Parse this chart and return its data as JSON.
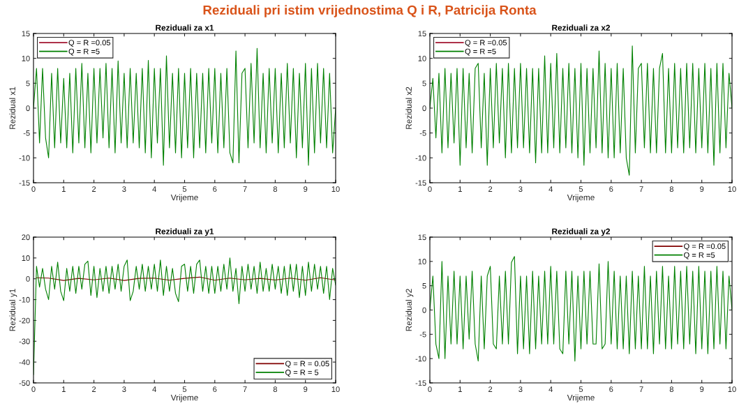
{
  "chart_data": [
    {
      "type": "line",
      "title": "Reziduali za x1",
      "xlabel": "Vrijeme",
      "ylabel": "Rezidual x1",
      "xlim": [
        0,
        10
      ],
      "xticks": [
        0,
        1,
        2,
        3,
        4,
        5,
        6,
        7,
        8,
        9,
        10
      ],
      "ylim": [
        -15,
        15
      ],
      "yticks": [
        -15,
        -10,
        -5,
        0,
        5,
        10,
        15
      ],
      "grid": false,
      "legend": "top left",
      "annotations": [
        "Reziduali pri istim vrijednostima Q i R, Patricija Ronta"
      ],
      "x": [
        0,
        0.1,
        0.2,
        0.3,
        0.4,
        0.5,
        0.6,
        0.7,
        0.8,
        0.9,
        1,
        1.1,
        1.2,
        1.3,
        1.4,
        1.5,
        1.6,
        1.7,
        1.8,
        1.9,
        2,
        2.1,
        2.2,
        2.3,
        2.4,
        2.5,
        2.6,
        2.7,
        2.8,
        2.9,
        3,
        3.1,
        3.2,
        3.3,
        3.4,
        3.5,
        3.6,
        3.7,
        3.8,
        3.9,
        4,
        4.1,
        4.2,
        4.3,
        4.4,
        4.5,
        4.6,
        4.7,
        4.8,
        4.9,
        5,
        5.1,
        5.2,
        5.3,
        5.4,
        5.5,
        5.6,
        5.7,
        5.8,
        5.9,
        6,
        6.1,
        6.2,
        6.3,
        6.4,
        6.5,
        6.6,
        6.7,
        6.8,
        6.9,
        7,
        7.1,
        7.2,
        7.3,
        7.4,
        7.5,
        7.6,
        7.7,
        7.8,
        7.9,
        8,
        8.1,
        8.2,
        8.3,
        8.4,
        8.5,
        8.6,
        8.7,
        8.8,
        8.9,
        9,
        9.1,
        9.2,
        9.3,
        9.4,
        9.5,
        9.6,
        9.7,
        9.8,
        9.9,
        10
      ],
      "series": [
        {
          "name": "Q = R =0.05",
          "color": "#a2142f",
          "values": [
            null,
            null,
            null,
            null,
            null,
            null,
            null,
            null,
            null,
            null,
            null,
            null,
            null,
            null,
            null,
            null,
            null,
            null,
            null,
            null,
            null,
            null,
            null,
            null,
            null,
            null,
            null,
            null,
            null,
            null,
            null,
            null,
            null,
            null,
            null,
            null,
            null,
            null,
            null,
            null,
            null,
            null,
            null,
            null,
            null,
            null,
            null,
            null,
            null,
            null,
            null,
            null,
            null,
            null,
            null,
            null,
            null,
            null,
            null,
            null,
            null,
            null,
            null,
            null,
            null,
            null,
            null,
            null,
            null,
            null,
            null,
            null,
            null,
            null,
            null,
            null,
            null,
            null,
            null,
            null,
            null,
            null,
            null,
            null,
            null,
            null,
            null,
            null,
            null,
            null,
            null,
            null,
            null,
            null,
            null,
            null,
            null,
            null,
            null,
            null,
            null
          ]
        },
        {
          "name": "Q = R =5",
          "color": "#008000",
          "values": [
            0,
            8,
            -7,
            8,
            -6,
            -10,
            7,
            -8,
            8,
            -7,
            6,
            -8,
            7,
            -9,
            8,
            -7,
            9,
            -8,
            7,
            -9,
            8,
            -7,
            8,
            -6,
            9,
            -8,
            8,
            -9,
            9.5,
            -7,
            7,
            -8,
            8,
            -7,
            7,
            -8,
            8,
            -9,
            9.6,
            -10,
            8,
            -7,
            8,
            -11.5,
            10.5,
            -8,
            7,
            -9,
            8,
            -10,
            7,
            -8,
            8,
            -10,
            7,
            -8,
            7,
            -9,
            8,
            -7,
            8,
            -9,
            7,
            -8,
            8,
            -9,
            -11,
            11.5,
            -11,
            7,
            8,
            -8,
            9,
            -7,
            12,
            -8,
            7,
            -9,
            8,
            -7,
            8,
            -9,
            7,
            -8,
            9,
            -7,
            8,
            -10,
            7,
            -8,
            9,
            -11.5,
            8,
            -9,
            9,
            -7,
            8,
            -8,
            7,
            -9,
            0
          ]
        }
      ]
    },
    {
      "type": "line",
      "title": "Reziduali za x2",
      "xlabel": "Vrijeme",
      "ylabel": "Rezidual x2",
      "xlim": [
        0,
        10
      ],
      "xticks": [
        0,
        1,
        2,
        3,
        4,
        5,
        6,
        7,
        8,
        9,
        10
      ],
      "ylim": [
        -15,
        15
      ],
      "yticks": [
        -15,
        -10,
        -5,
        0,
        5,
        10,
        15
      ],
      "grid": false,
      "legend": "top left",
      "x": [
        0,
        0.1,
        0.2,
        0.3,
        0.4,
        0.5,
        0.6,
        0.7,
        0.8,
        0.9,
        1,
        1.1,
        1.2,
        1.3,
        1.4,
        1.5,
        1.6,
        1.7,
        1.8,
        1.9,
        2,
        2.1,
        2.2,
        2.3,
        2.4,
        2.5,
        2.6,
        2.7,
        2.8,
        2.9,
        3,
        3.1,
        3.2,
        3.3,
        3.4,
        3.5,
        3.6,
        3.7,
        3.8,
        3.9,
        4,
        4.1,
        4.2,
        4.3,
        4.4,
        4.5,
        4.6,
        4.7,
        4.8,
        4.9,
        5,
        5.1,
        5.2,
        5.3,
        5.4,
        5.5,
        5.6,
        5.7,
        5.8,
        5.9,
        6,
        6.1,
        6.2,
        6.3,
        6.4,
        6.5,
        6.6,
        6.7,
        6.8,
        6.9,
        7,
        7.1,
        7.2,
        7.3,
        7.4,
        7.5,
        7.6,
        7.7,
        7.8,
        7.9,
        8,
        8.1,
        8.2,
        8.3,
        8.4,
        8.5,
        8.6,
        8.7,
        8.8,
        8.9,
        9,
        9.1,
        9.2,
        9.3,
        9.4,
        9.5,
        9.6,
        9.7,
        9.8,
        9.9,
        10
      ],
      "series": [
        {
          "name": "Q = R =0.05",
          "color": "#a2142f",
          "values": [
            null,
            null,
            null,
            null,
            null,
            null,
            null,
            null,
            null,
            null,
            null,
            null,
            null,
            null,
            null,
            null,
            null,
            null,
            null,
            null,
            null,
            null,
            null,
            null,
            null,
            null,
            null,
            null,
            null,
            null,
            null,
            null,
            null,
            null,
            null,
            null,
            null,
            null,
            null,
            null,
            null,
            null,
            null,
            null,
            null,
            null,
            null,
            null,
            null,
            null,
            null,
            null,
            null,
            null,
            null,
            null,
            null,
            null,
            null,
            null,
            null,
            null,
            null,
            null,
            null,
            null,
            null,
            null,
            null,
            null,
            null,
            null,
            null,
            null,
            null,
            null,
            null,
            null,
            null,
            null,
            null,
            null,
            null,
            null,
            null,
            null,
            null,
            null,
            null,
            null,
            null,
            null,
            null,
            null,
            null,
            null,
            null,
            null,
            null,
            null,
            null
          ]
        },
        {
          "name": "Q = R =5",
          "color": "#008000",
          "values": [
            0,
            6,
            -6,
            7,
            -9,
            8,
            -8,
            7,
            -7,
            8,
            -11.5,
            8,
            -8,
            7,
            -9,
            8,
            9,
            -8,
            7,
            -11.5,
            8,
            -8,
            9,
            -7,
            8,
            -10,
            9,
            -9,
            8,
            -8,
            9,
            -8,
            8,
            -9,
            8,
            -11,
            8,
            -9,
            10.5,
            -9,
            9,
            -8,
            11,
            -9,
            8,
            -8,
            9,
            -9,
            8,
            -10,
            9,
            -11.5,
            8,
            -9,
            8,
            -8,
            11.5,
            -9,
            9,
            -10,
            8,
            -10,
            9,
            -9,
            8,
            -10,
            -13.5,
            12.5,
            -9,
            8,
            9,
            -8,
            9,
            -9,
            8,
            -9,
            8,
            11,
            -9,
            8,
            -9,
            9,
            -8,
            8,
            -9,
            9,
            -8,
            9,
            -9,
            8,
            -8,
            9,
            -9,
            8,
            -11.5,
            9,
            -9,
            9,
            -8,
            7,
            0
          ]
        }
      ]
    },
    {
      "type": "line",
      "title": "Reziduali za y1",
      "xlabel": "Vrijeme",
      "ylabel": "Rezidual y1",
      "xlim": [
        0,
        10
      ],
      "xticks": [
        0,
        1,
        2,
        3,
        4,
        5,
        6,
        7,
        8,
        9,
        10
      ],
      "ylim": [
        -50,
        20
      ],
      "yticks": [
        -50,
        -40,
        -30,
        -20,
        -10,
        0,
        10,
        20
      ],
      "grid": false,
      "legend": "bottom right",
      "x": [
        0,
        0.1,
        0.2,
        0.3,
        0.4,
        0.5,
        0.6,
        0.7,
        0.8,
        0.9,
        1,
        1.1,
        1.2,
        1.3,
        1.4,
        1.5,
        1.6,
        1.7,
        1.8,
        1.9,
        2,
        2.1,
        2.2,
        2.3,
        2.4,
        2.5,
        2.6,
        2.7,
        2.8,
        2.9,
        3,
        3.1,
        3.2,
        3.3,
        3.4,
        3.5,
        3.6,
        3.7,
        3.8,
        3.9,
        4,
        4.1,
        4.2,
        4.3,
        4.4,
        4.5,
        4.6,
        4.7,
        4.8,
        4.9,
        5,
        5.1,
        5.2,
        5.3,
        5.4,
        5.5,
        5.6,
        5.7,
        5.8,
        5.9,
        6,
        6.1,
        6.2,
        6.3,
        6.4,
        6.5,
        6.6,
        6.7,
        6.8,
        6.9,
        7,
        7.1,
        7.2,
        7.3,
        7.4,
        7.5,
        7.6,
        7.7,
        7.8,
        7.9,
        8,
        8.1,
        8.2,
        8.3,
        8.4,
        8.5,
        8.6,
        8.7,
        8.8,
        8.9,
        9,
        9.1,
        9.2,
        9.3,
        9.4,
        9.5,
        9.6,
        9.7,
        9.8,
        9.9,
        10
      ],
      "series": [
        {
          "name": "Q = R = 0.05",
          "color": "#800000",
          "x": [
            0.1,
            0.5,
            1,
            1.5,
            2,
            2.5,
            3,
            3.5,
            4,
            4.5,
            5,
            5.5,
            6,
            6.5,
            7,
            7.5,
            8,
            8.5,
            9,
            9.5,
            10
          ],
          "values": [
            0.5,
            0.3,
            -0.8,
            0.2,
            -0.5,
            0.3,
            -0.8,
            0.2,
            0.3,
            -0.7,
            0.2,
            0.8,
            -0.7,
            0.3,
            -0.5,
            0.2,
            -0.6,
            0.3,
            -0.7,
            0.5,
            -0.6
          ]
        },
        {
          "name": "Q = R = 5",
          "color": "#008000",
          "values": [
            -46,
            6,
            -4,
            5,
            -5,
            -10,
            6,
            -5,
            8,
            -6,
            -10.5,
            5,
            -6,
            6,
            -7,
            6,
            -5,
            7,
            8.5,
            -8,
            6,
            -9,
            5,
            -6,
            6,
            -7,
            6,
            -5,
            7,
            -6,
            6,
            9,
            -10.5,
            -6,
            6,
            -5,
            7,
            -6,
            6,
            -5,
            7,
            -6,
            9,
            -8,
            6,
            -6,
            5,
            -7,
            -11,
            6,
            7,
            -6,
            6,
            -7,
            7,
            9,
            -6,
            6,
            -7,
            6,
            -7,
            6,
            -6,
            7,
            -5,
            10,
            -6,
            5,
            -12,
            6,
            -6,
            7,
            -5,
            6,
            -7,
            8,
            -6,
            5,
            -6,
            7,
            -5,
            6,
            -7,
            6,
            -8,
            7,
            -6,
            7,
            -9,
            6,
            -8,
            8,
            -6,
            7,
            -5,
            6,
            -7,
            6,
            -10,
            5,
            -3
          ]
        }
      ]
    },
    {
      "type": "line",
      "title": "Reziduali za y2",
      "xlabel": "Vrijeme",
      "ylabel": "Rezidual y2",
      "xlim": [
        0,
        10
      ],
      "xticks": [
        0,
        1,
        2,
        3,
        4,
        5,
        6,
        7,
        8,
        9,
        10
      ],
      "ylim": [
        -15,
        15
      ],
      "yticks": [
        -15,
        -10,
        -5,
        0,
        5,
        10,
        15
      ],
      "grid": false,
      "legend": "top right",
      "x": [
        0,
        0.1,
        0.2,
        0.3,
        0.4,
        0.5,
        0.6,
        0.7,
        0.8,
        0.9,
        1,
        1.1,
        1.2,
        1.3,
        1.4,
        1.5,
        1.6,
        1.7,
        1.8,
        1.9,
        2,
        2.1,
        2.2,
        2.3,
        2.4,
        2.5,
        2.6,
        2.7,
        2.8,
        2.9,
        3,
        3.1,
        3.2,
        3.3,
        3.4,
        3.5,
        3.6,
        3.7,
        3.8,
        3.9,
        4,
        4.1,
        4.2,
        4.3,
        4.4,
        4.5,
        4.6,
        4.7,
        4.8,
        4.9,
        5,
        5.1,
        5.2,
        5.3,
        5.4,
        5.5,
        5.6,
        5.7,
        5.8,
        5.9,
        6,
        6.1,
        6.2,
        6.3,
        6.4,
        6.5,
        6.6,
        6.7,
        6.8,
        6.9,
        7,
        7.1,
        7.2,
        7.3,
        7.4,
        7.5,
        7.6,
        7.7,
        7.8,
        7.9,
        8,
        8.1,
        8.2,
        8.3,
        8.4,
        8.5,
        8.6,
        8.7,
        8.8,
        8.9,
        9,
        9.1,
        9.2,
        9.3,
        9.4,
        9.5,
        9.6,
        9.7,
        9.8,
        9.9,
        10
      ],
      "series": [
        {
          "name": "Q = R =0.05",
          "color": "#800000",
          "values": [
            null,
            null,
            null,
            null,
            null,
            null,
            null,
            null,
            null,
            null,
            null,
            null,
            null,
            null,
            null,
            null,
            null,
            null,
            null,
            null,
            null,
            null,
            null,
            null,
            null,
            null,
            null,
            null,
            null,
            null,
            null,
            null,
            null,
            null,
            null,
            null,
            null,
            null,
            null,
            null,
            null,
            null,
            null,
            null,
            null,
            null,
            null,
            null,
            null,
            null,
            null,
            null,
            null,
            null,
            null,
            null,
            null,
            null,
            null,
            null,
            null,
            null,
            null,
            null,
            null,
            null,
            null,
            null,
            null,
            null,
            null,
            null,
            null,
            null,
            null,
            null,
            null,
            null,
            null,
            null,
            null,
            null,
            null,
            null,
            null,
            null,
            null,
            null,
            null,
            null,
            null,
            null,
            null,
            null,
            null,
            null,
            null,
            null,
            null,
            null,
            null
          ]
        },
        {
          "name": "Q = R =5",
          "color": "#008000",
          "values": [
            0,
            7,
            -7,
            -10,
            10,
            -10,
            7,
            -7,
            8,
            -7,
            7,
            -8,
            7,
            -6,
            8,
            -7,
            -10.5,
            7,
            -8,
            7,
            9,
            -7,
            -8,
            7,
            -7,
            8,
            -7,
            9.8,
            11,
            -9,
            7,
            -8,
            7,
            -9,
            8,
            -8,
            7,
            -7,
            8,
            -7,
            9,
            -7,
            8,
            -8,
            -9,
            8,
            -7,
            8,
            -10.5,
            7,
            -8,
            8,
            -7,
            8,
            -7,
            -7,
            9.5,
            -8,
            -7,
            10,
            -7,
            8,
            -8,
            7,
            -8,
            7,
            -9,
            8,
            -8,
            7,
            -8,
            9,
            -8,
            7,
            -9,
            8,
            -7,
            9,
            -8,
            7,
            -8,
            9,
            -7,
            8,
            -8,
            9,
            -7,
            8,
            -9,
            9,
            -8,
            8,
            -9,
            8,
            -8,
            9,
            -7,
            8,
            -8,
            7,
            0
          ]
        }
      ]
    }
  ]
}
